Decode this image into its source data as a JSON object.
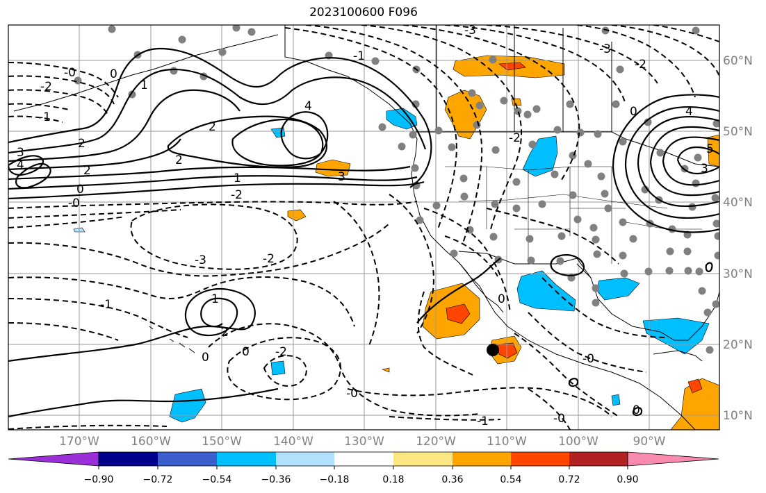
{
  "map": {
    "title": "2023100600 F096",
    "colors": {
      "land_outline": "#000000",
      "gridline": "#9a9a9a",
      "station_dot": "#808080",
      "contour": "#000000"
    },
    "longitude_labels": [
      "170°W",
      "160°W",
      "150°W",
      "140°W",
      "130°W",
      "120°W",
      "110°W",
      "100°W",
      "90°W"
    ],
    "latitude_labels": [
      "60°N",
      "50°N",
      "40°N",
      "30°N",
      "20°N",
      "10°N"
    ],
    "contour_labels": [
      {
        "text": "-3"
      },
      {
        "text": "-1"
      },
      {
        "text": "-3"
      },
      {
        "text": "-2"
      },
      {
        "text": "-0"
      },
      {
        "text": "-2"
      },
      {
        "text": "-1"
      },
      {
        "text": "0"
      },
      {
        "text": "1"
      },
      {
        "text": "2"
      },
      {
        "text": "4"
      },
      {
        "text": "2"
      },
      {
        "text": "3"
      },
      {
        "text": "4"
      },
      {
        "text": "2"
      },
      {
        "text": "2"
      },
      {
        "text": "1"
      },
      {
        "text": "0"
      },
      {
        "text": "3"
      },
      {
        "text": "-2"
      },
      {
        "text": "-0"
      },
      {
        "text": "-2"
      },
      {
        "text": "0"
      },
      {
        "text": "4"
      },
      {
        "text": "5"
      },
      {
        "text": "3"
      },
      {
        "text": "-3"
      },
      {
        "text": "-2"
      },
      {
        "text": "-1"
      },
      {
        "text": "1"
      },
      {
        "text": "2"
      },
      {
        "text": "0"
      },
      {
        "text": "0"
      },
      {
        "text": "-2"
      },
      {
        "text": "-0"
      },
      {
        "text": "-1"
      },
      {
        "text": "0"
      },
      {
        "text": "-0"
      },
      {
        "text": "0"
      },
      {
        "text": "-0"
      }
    ]
  },
  "colorbar": {
    "colors": [
      "#9b30d9",
      "#00008b",
      "#3a5fcd",
      "#00bfff",
      "#b0e2ff",
      "#ffffff",
      "#fce883",
      "#ffa500",
      "#ff4500",
      "#b22222",
      "#f88aae"
    ],
    "tick_labels": [
      "−0.90",
      "−0.72",
      "−0.54",
      "−0.36",
      "−0.18",
      "0.18",
      "0.36",
      "0.54",
      "0.72",
      "0.90"
    ]
  }
}
